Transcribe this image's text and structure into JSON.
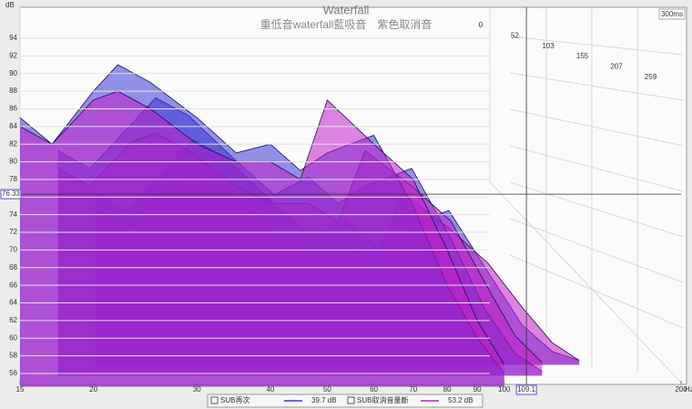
{
  "chart_data": {
    "type": "waterfall",
    "title": "Waterfall",
    "subtitle": "重低音waterfall藍吸音　紫色取消音",
    "y_label": "dB",
    "x_label": "Hz",
    "log_x": true,
    "x": [
      15,
      17,
      20,
      22,
      25,
      30,
      35,
      40,
      45,
      50,
      60,
      70,
      80,
      90,
      100
    ],
    "xlim": [
      15,
      200
    ],
    "xticks": [
      15,
      20,
      30,
      40,
      50,
      60,
      70,
      80,
      90,
      100,
      200
    ],
    "ylim": [
      54.5,
      96
    ],
    "yticks": [
      56,
      58,
      60,
      62,
      64,
      66,
      68,
      70,
      72,
      74,
      76,
      78,
      80,
      82,
      84,
      86,
      88,
      90,
      92,
      94
    ],
    "zticks": [
      0,
      52,
      103,
      155,
      207,
      259
    ],
    "z_end": {
      "value": 300,
      "label": "300ms"
    },
    "cursor": {
      "x": 109.1,
      "y": 76.33
    },
    "series": [
      {
        "name": "SUB再次",
        "color": "#3b36d6",
        "level": "39.7 dB",
        "slices": [
          {
            "time": 0,
            "values": [
              85,
              82,
              88,
              91,
              89,
              85,
              81,
              82,
              79,
              81,
              83,
              75,
              66,
              60,
              56
            ]
          },
          {
            "time": 52,
            "values": [
              80,
              78,
              83,
              86,
              84,
              79,
              75,
              77,
              74,
              76,
              78,
              70,
              62,
              57,
              55
            ]
          },
          {
            "time": 103,
            "values": [
              74,
              72,
              77,
              80,
              78,
              73,
              69,
              71,
              68,
              70,
              72,
              65,
              59,
              56,
              55
            ]
          }
        ]
      },
      {
        "name": "SUB取消音量斷",
        "color": "#c21fc9",
        "level": "53.2 dB",
        "slices": [
          {
            "time": 0,
            "values": [
              84,
              82,
              87,
              88,
              86,
              82,
              80,
              80,
              78,
              87,
              82,
              78,
              70,
              62,
              57
            ]
          },
          {
            "time": 52,
            "values": [
              78,
              76,
              81,
              82,
              80,
              76,
              74,
              74,
              72,
              80,
              76,
              72,
              65,
              59,
              56
            ]
          },
          {
            "time": 103,
            "values": [
              72,
              70,
              75,
              76,
              74,
              70,
              68,
              68,
              66,
              74,
              70,
              66,
              61,
              57,
              55
            ]
          }
        ]
      }
    ]
  }
}
